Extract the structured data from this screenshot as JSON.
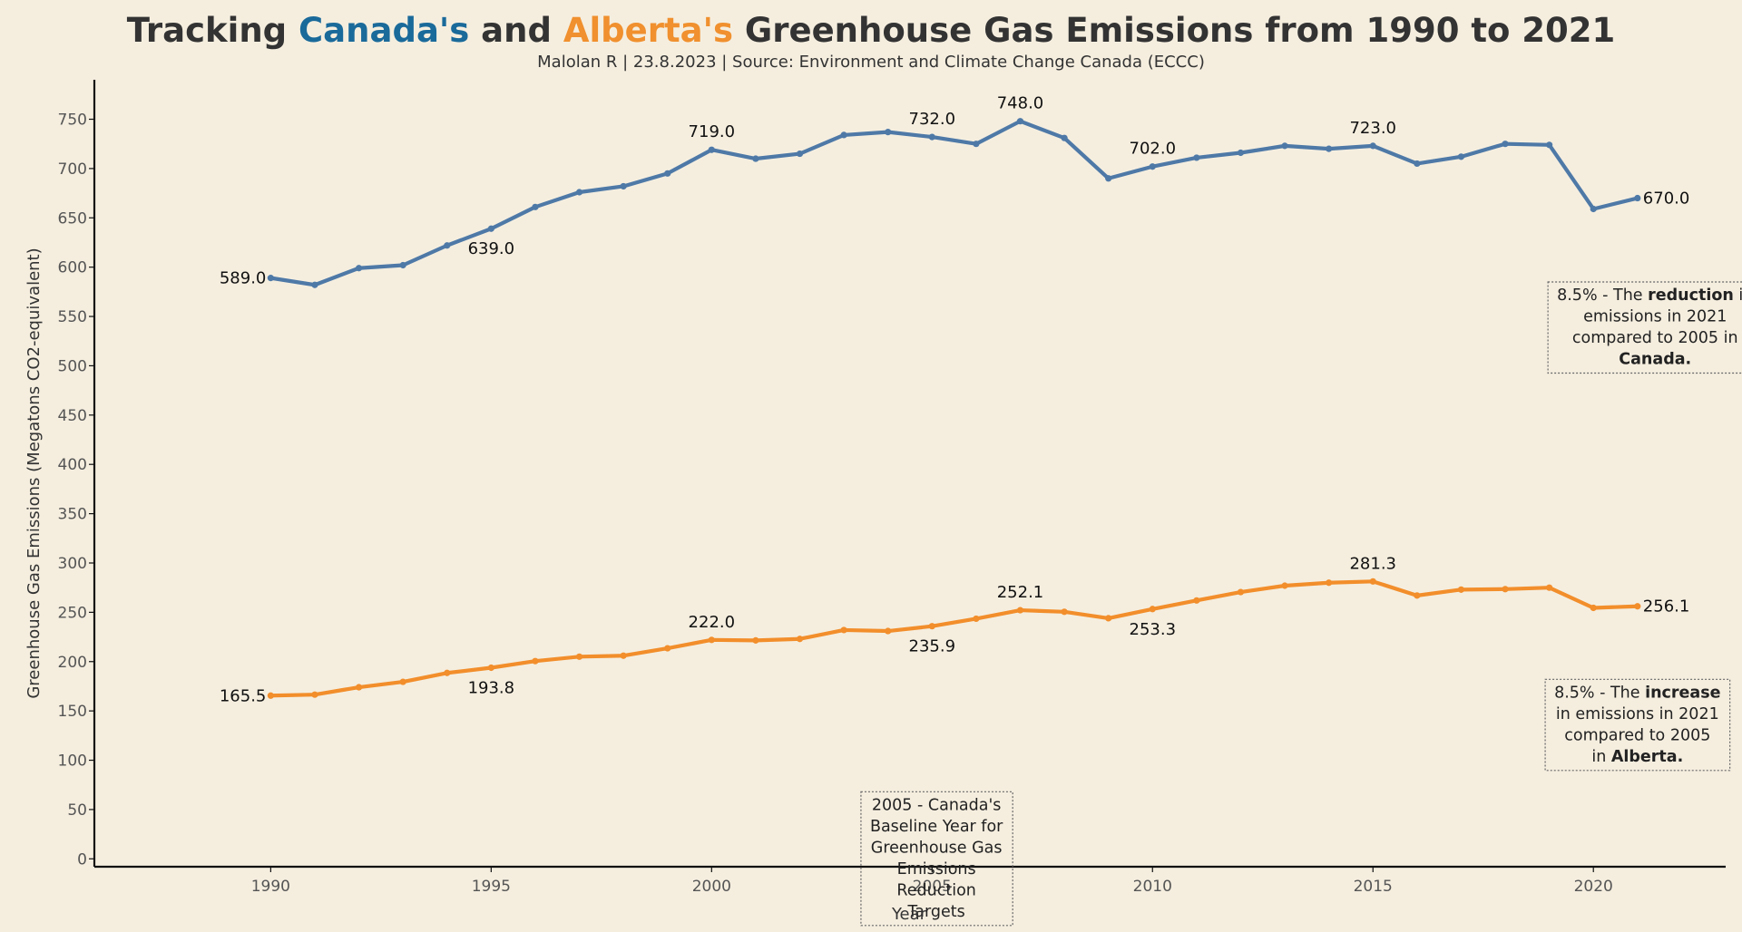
{
  "title": {
    "parts": [
      {
        "text": "Tracking ",
        "color": "#333333"
      },
      {
        "text": "Canada's",
        "color": "#1a6a9a"
      },
      {
        "text": " and ",
        "color": "#333333"
      },
      {
        "text": "Alberta's",
        "color": "#f0902e"
      },
      {
        "text": " Greenhouse Gas Emissions from 1990 to 2021",
        "color": "#333333"
      }
    ]
  },
  "subtitle": "Malolan R | 23.8.2023 | Source: Environment and Climate Change Canada (ECCC)",
  "chart_data": {
    "type": "line",
    "title": "Tracking Canada's and Alberta's Greenhouse Gas Emissions from 1990 to 2021",
    "xlabel": "Year",
    "ylabel": "Greenhouse Gas Emissions (Megatons CO2-equivalent)",
    "xlim": [
      1986,
      2023
    ],
    "ylim": [
      -8,
      790
    ],
    "xticks": [
      1990,
      1995,
      2000,
      2005,
      2010,
      2015,
      2020
    ],
    "yticks": [
      0,
      50,
      100,
      150,
      200,
      250,
      300,
      350,
      400,
      450,
      500,
      550,
      600,
      650,
      700,
      750
    ],
    "grid": false,
    "x": [
      1990,
      1991,
      1992,
      1993,
      1994,
      1995,
      1996,
      1997,
      1998,
      1999,
      2000,
      2001,
      2002,
      2003,
      2004,
      2005,
      2006,
      2007,
      2008,
      2009,
      2010,
      2011,
      2012,
      2013,
      2014,
      2015,
      2016,
      2017,
      2018,
      2019,
      2020,
      2021
    ],
    "series": [
      {
        "color": "#4e79a7",
        "values": [
          589,
          582,
          599,
          602,
          622,
          639,
          661,
          676,
          682,
          695,
          719,
          710,
          715,
          734,
          737,
          732,
          725,
          748,
          731,
          690,
          702,
          711,
          716,
          723,
          720,
          723,
          705,
          712,
          725,
          724,
          659,
          670
        ],
        "labels": [
          {
            "x": 1990,
            "text": "589.0",
            "pos": "left"
          },
          {
            "x": 1995,
            "text": "639.0",
            "pos": "below"
          },
          {
            "x": 2000,
            "text": "719.0",
            "pos": "above"
          },
          {
            "x": 2005,
            "text": "732.0",
            "pos": "above"
          },
          {
            "x": 2007,
            "text": "748.0",
            "pos": "above"
          },
          {
            "x": 2010,
            "text": "702.0",
            "pos": "above"
          },
          {
            "x": 2015,
            "text": "723.0",
            "pos": "above"
          },
          {
            "x": 2021,
            "text": "670.0",
            "pos": "right"
          }
        ]
      },
      {
        "color": "#f28e2b",
        "values": [
          165.5,
          166.5,
          174,
          179.5,
          188.5,
          193.8,
          200.5,
          205,
          206,
          213.5,
          222,
          221.5,
          223,
          232,
          231,
          235.9,
          243.5,
          252.1,
          250.5,
          244,
          253.3,
          262,
          270.5,
          277,
          280,
          281.3,
          267,
          273,
          273.5,
          275,
          254.5,
          256.1
        ],
        "labels": [
          {
            "x": 1990,
            "text": "165.5",
            "pos": "left"
          },
          {
            "x": 1995,
            "text": "193.8",
            "pos": "below"
          },
          {
            "x": 2000,
            "text": "222.0",
            "pos": "above"
          },
          {
            "x": 2005,
            "text": "235.9",
            "pos": "below"
          },
          {
            "x": 2007,
            "text": "252.1",
            "pos": "above"
          },
          {
            "x": 2010,
            "text": "253.3",
            "pos": "below"
          },
          {
            "x": 2015,
            "text": "281.3",
            "pos": "above"
          },
          {
            "x": 2021,
            "text": "256.1",
            "pos": "right"
          }
        ]
      }
    ],
    "annotations": [
      {
        "anchor": {
          "x": 2021.4,
          "y": 585
        },
        "lines": [
          [
            {
              "text": "8.5% - The ",
              "bold": false
            },
            {
              "text": "reduction",
              "bold": true
            },
            {
              "text": " in",
              "bold": false
            }
          ],
          [
            {
              "text": "emissions in 2021",
              "bold": false
            }
          ],
          [
            {
              "text": "compared to 2005 in",
              "bold": false
            }
          ],
          [
            {
              "text": "Canada.",
              "bold": true
            }
          ]
        ]
      },
      {
        "anchor": {
          "x": 2021.0,
          "y": 182
        },
        "lines": [
          [
            {
              "text": "8.5% - The ",
              "bold": false
            },
            {
              "text": "increase",
              "bold": true
            }
          ],
          [
            {
              "text": "in emissions in 2021",
              "bold": false
            }
          ],
          [
            {
              "text": "compared to 2005",
              "bold": false
            }
          ],
          [
            {
              "text": "in ",
              "bold": false
            },
            {
              "text": "Alberta.",
              "bold": true
            }
          ]
        ]
      },
      {
        "anchor": {
          "x": 2005.1,
          "y": 68
        },
        "lines": [
          [
            {
              "text": "2005 - Canada's",
              "bold": false
            }
          ],
          [
            {
              "text": "Baseline Year for",
              "bold": false
            }
          ],
          [
            {
              "text": "Greenhouse Gas",
              "bold": false
            }
          ],
          [
            {
              "text": "Emissions",
              "bold": false
            }
          ],
          [
            {
              "text": "Reduction",
              "bold": false
            }
          ],
          [
            {
              "text": "Targets",
              "bold": false
            }
          ]
        ]
      }
    ]
  }
}
